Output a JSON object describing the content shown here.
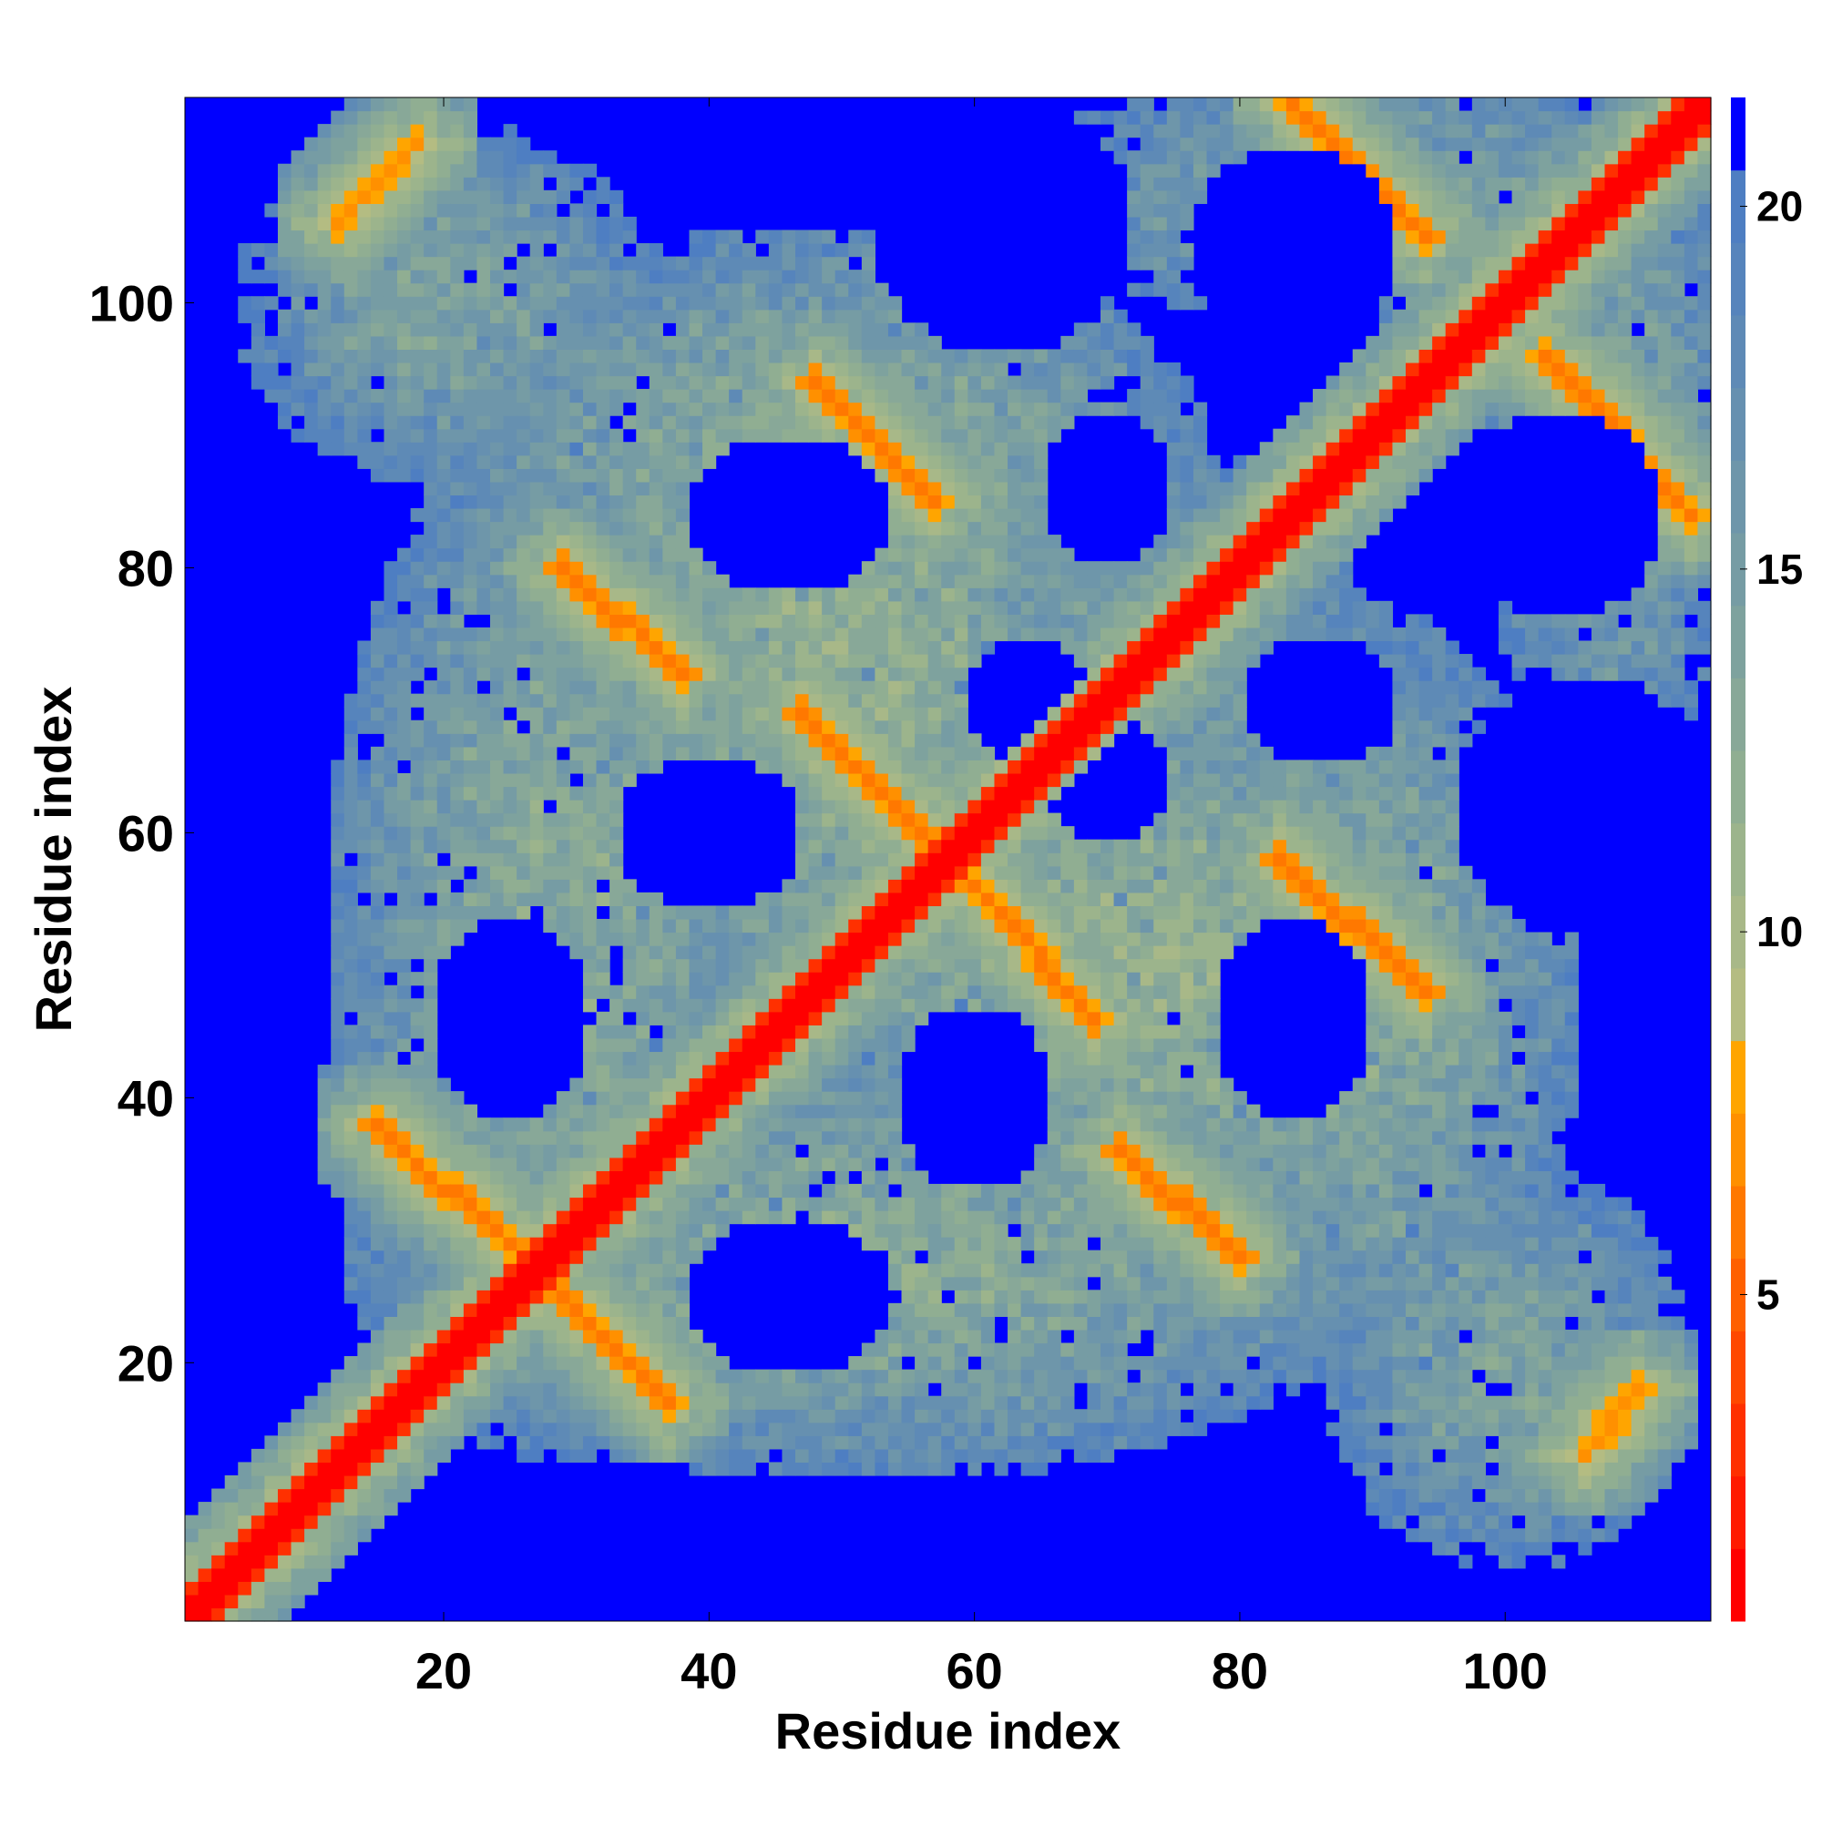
{
  "chart_data": {
    "type": "heatmap",
    "title": "",
    "xlabel": "Residue index",
    "ylabel": "Residue index",
    "x_range": [
      1,
      115
    ],
    "y_range": [
      1,
      115
    ],
    "x_ticks": [
      20,
      40,
      60,
      80,
      100
    ],
    "y_ticks": [
      20,
      40,
      60,
      80,
      100
    ],
    "grid": false,
    "colorbar": {
      "range": [
        0.5,
        21.5
      ],
      "ticks": [
        5,
        10,
        15,
        20
      ],
      "location": "right",
      "bins": [
        {
          "max": 1.5,
          "color": "#ff0000"
        },
        {
          "max": 2.5,
          "color": "#ff1a00"
        },
        {
          "max": 3.5,
          "color": "#ff3000"
        },
        {
          "max": 4.5,
          "color": "#ff4800"
        },
        {
          "max": 5.5,
          "color": "#ff6000"
        },
        {
          "max": 6.5,
          "color": "#ff7800"
        },
        {
          "max": 7.5,
          "color": "#ff9000"
        },
        {
          "max": 8.5,
          "color": "#ffa500"
        },
        {
          "max": 9.5,
          "color": "#b4bc82"
        },
        {
          "max": 10.5,
          "color": "#a8b888"
        },
        {
          "max": 11.5,
          "color": "#9cb48c"
        },
        {
          "max": 12.5,
          "color": "#90ae92"
        },
        {
          "max": 13.5,
          "color": "#88a898"
        },
        {
          "max": 14.5,
          "color": "#7ea29e"
        },
        {
          "max": 15.5,
          "color": "#769ca4"
        },
        {
          "max": 16.5,
          "color": "#6e96aa"
        },
        {
          "max": 17.5,
          "color": "#6690b0"
        },
        {
          "max": 18.5,
          "color": "#5e8ab6"
        },
        {
          "max": 19.5,
          "color": "#5684bc"
        },
        {
          "max": 20.5,
          "color": "#4e7ec2"
        },
        {
          "max": 21.5,
          "color": "#0000ff"
        }
      ]
    },
    "description_of_values": "pairwise residue distance map; main diagonal ~1 (red), background capped at 21 (blue)",
    "features": {
      "diagonal_width": 3,
      "antiparallel_contacts": [
        {
          "x0": 15,
          "y0": 38,
          "x1": 26,
          "y1": 28,
          "value": 6
        },
        {
          "x0": 29,
          "y0": 25,
          "x1": 37,
          "y1": 17,
          "value": 6
        },
        {
          "x0": 29,
          "y0": 80,
          "x1": 38,
          "y1": 72,
          "value": 6
        },
        {
          "x0": 47,
          "y0": 69,
          "x1": 57,
          "y1": 59,
          "value": 6
        },
        {
          "x0": 48,
          "y0": 94,
          "x1": 57,
          "y1": 85,
          "value": 6
        },
        {
          "x0": 60,
          "y0": 56,
          "x1": 69,
          "y1": 46,
          "value": 6
        },
        {
          "x0": 71,
          "y0": 36,
          "x1": 80,
          "y1": 28,
          "value": 6
        },
        {
          "x0": 83,
          "y0": 58,
          "x1": 94,
          "y1": 48,
          "value": 6
        },
        {
          "x0": 84,
          "y0": 115,
          "x1": 94,
          "y1": 105,
          "value": 6
        },
        {
          "x0": 103,
          "y0": 96,
          "x1": 114,
          "y1": 84,
          "value": 6
        },
        {
          "x0": 12,
          "y0": 106,
          "x1": 18,
          "y1": 112,
          "value": 7
        },
        {
          "x0": 106,
          "y0": 13,
          "x1": 110,
          "y1": 18,
          "value": 7
        }
      ],
      "contact_zones": [
        {
          "cx": 28,
          "cy": 52,
          "rx": 17,
          "ry": 40,
          "value": 13
        },
        {
          "cx": 52,
          "cy": 28,
          "rx": 40,
          "ry": 17,
          "value": 13
        },
        {
          "cx": 50,
          "cy": 72,
          "rx": 20,
          "ry": 28,
          "value": 12
        },
        {
          "cx": 72,
          "cy": 50,
          "rx": 28,
          "ry": 20,
          "value": 12
        },
        {
          "cx": 48,
          "cy": 88,
          "rx": 30,
          "ry": 18,
          "value": 13
        },
        {
          "cx": 88,
          "cy": 48,
          "rx": 18,
          "ry": 30,
          "value": 13
        },
        {
          "cx": 90,
          "cy": 108,
          "rx": 28,
          "ry": 10,
          "value": 14
        },
        {
          "cx": 108,
          "cy": 90,
          "rx": 10,
          "ry": 28,
          "value": 14
        },
        {
          "cx": 20,
          "cy": 100,
          "rx": 16,
          "ry": 14,
          "value": 14
        },
        {
          "cx": 100,
          "cy": 20,
          "rx": 14,
          "ry": 16,
          "value": 14
        },
        {
          "cx": 74,
          "cy": 74,
          "rx": 16,
          "ry": 16,
          "value": 14
        },
        {
          "cx": 30,
          "cy": 30,
          "rx": 16,
          "ry": 16,
          "value": 14
        }
      ],
      "empty_holes": [
        {
          "cx": 46,
          "cy": 84,
          "rx": 8,
          "ry": 6
        },
        {
          "cx": 84,
          "cy": 46,
          "rx": 6,
          "ry": 8
        },
        {
          "cx": 25,
          "cy": 46,
          "rx": 6,
          "ry": 8
        },
        {
          "cx": 46,
          "cy": 25,
          "rx": 8,
          "ry": 6
        },
        {
          "cx": 40,
          "cy": 60,
          "rx": 7,
          "ry": 6
        },
        {
          "cx": 60,
          "cy": 40,
          "rx": 6,
          "ry": 7
        },
        {
          "cx": 64,
          "cy": 70,
          "rx": 5,
          "ry": 5
        },
        {
          "cx": 70,
          "cy": 64,
          "rx": 5,
          "ry": 5
        },
        {
          "cx": 86,
          "cy": 70,
          "rx": 6,
          "ry": 5
        },
        {
          "cx": 70,
          "cy": 86,
          "rx": 5,
          "ry": 6
        },
        {
          "cx": 106,
          "cy": 62,
          "rx": 10,
          "ry": 10
        },
        {
          "cx": 62,
          "cy": 106,
          "rx": 10,
          "ry": 10
        },
        {
          "cx": 104,
          "cy": 84,
          "rx": 8,
          "ry": 8
        },
        {
          "cx": 84,
          "cy": 104,
          "rx": 8,
          "ry": 8
        }
      ]
    }
  }
}
